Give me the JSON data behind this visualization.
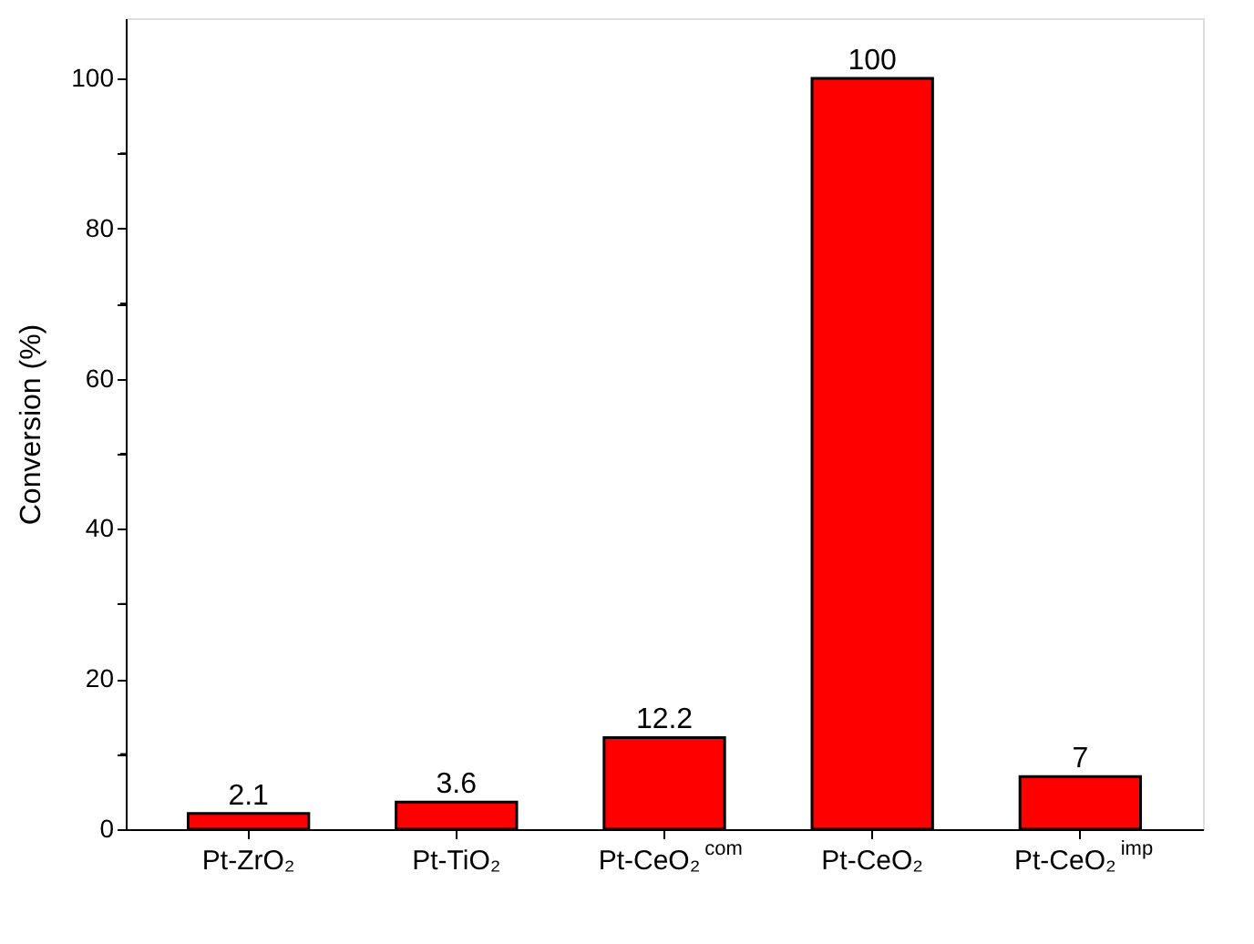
{
  "chart_data": {
    "type": "bar",
    "categories": [
      "Pt-ZrO₂",
      "Pt-TiO₂",
      "Pt-CeO₂$^{com}$",
      "Pt-CeO₂",
      "Pt-CeO₂$^{imp}$"
    ],
    "values": [
      2.1,
      3.6,
      12.2,
      100,
      7
    ],
    "color": "#ff0000",
    "ylabel": "Conversion (%)",
    "ylim": [
      0,
      108
    ],
    "yticks": [
      0,
      {
        "value": 10,
        "label": null
      },
      20,
      {
        "value": 30,
        "label": null
      },
      40,
      {
        "value": 50,
        "label": null
      },
      60,
      {
        "value": 70,
        "label": null
      },
      80,
      {
        "value": 90,
        "label": null
      },
      100
    ],
    "data_labels": true,
    "grid": false
  }
}
